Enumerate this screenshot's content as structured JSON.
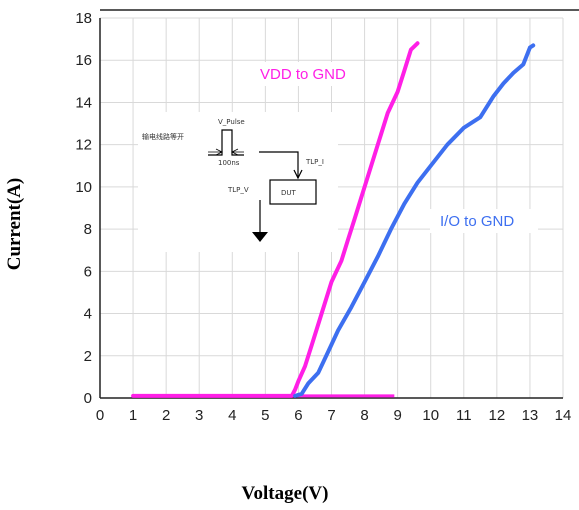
{
  "chart_data": {
    "type": "line",
    "xlabel": "Voltage(V)",
    "ylabel": "Current(A)",
    "xlim": [
      0,
      14
    ],
    "ylim": [
      0,
      18
    ],
    "x_ticks": [
      "0",
      "1",
      "2",
      "3",
      "4",
      "5",
      "6",
      "7",
      "8",
      "9",
      "10",
      "11",
      "12",
      "13",
      "14"
    ],
    "y_ticks": [
      "0",
      "2",
      "4",
      "6",
      "8",
      "10",
      "12",
      "14",
      "16",
      "18"
    ],
    "grid": true,
    "series": [
      {
        "name": "VDD to GND",
        "color": "#ff1fe6",
        "points": [
          [
            1.0,
            0.1
          ],
          [
            5.8,
            0.1
          ],
          [
            5.9,
            0.4
          ],
          [
            6.0,
            0.8
          ],
          [
            6.2,
            1.5
          ],
          [
            6.4,
            2.5
          ],
          [
            6.6,
            3.5
          ],
          [
            6.8,
            4.5
          ],
          [
            7.0,
            5.5
          ],
          [
            7.3,
            6.5
          ],
          [
            7.5,
            7.5
          ],
          [
            7.7,
            8.5
          ],
          [
            7.9,
            9.5
          ],
          [
            8.1,
            10.5
          ],
          [
            8.3,
            11.5
          ],
          [
            8.5,
            12.5
          ],
          [
            8.7,
            13.5
          ],
          [
            9.0,
            14.5
          ],
          [
            9.2,
            15.5
          ],
          [
            9.4,
            16.5
          ],
          [
            9.6,
            16.8
          ]
        ]
      },
      {
        "name": "I/O to GND",
        "color": "#3d6ff0",
        "points": [
          [
            5.9,
            0.1
          ],
          [
            6.1,
            0.2
          ],
          [
            6.3,
            0.7
          ],
          [
            6.6,
            1.2
          ],
          [
            6.9,
            2.2
          ],
          [
            7.2,
            3.2
          ],
          [
            7.6,
            4.3
          ],
          [
            8.0,
            5.5
          ],
          [
            8.4,
            6.7
          ],
          [
            8.8,
            8.0
          ],
          [
            9.2,
            9.2
          ],
          [
            9.6,
            10.2
          ],
          [
            10.0,
            11.0
          ],
          [
            10.5,
            12.0
          ],
          [
            11.0,
            12.8
          ],
          [
            11.5,
            13.3
          ],
          [
            11.9,
            14.3
          ],
          [
            12.2,
            14.9
          ],
          [
            12.5,
            15.4
          ],
          [
            12.8,
            15.8
          ],
          [
            13.0,
            16.6
          ],
          [
            13.1,
            16.7
          ]
        ]
      }
    ],
    "baseline": {
      "x_start": 1.0,
      "x_end": 8.9,
      "y": 0.1
    }
  },
  "inset": {
    "pulse_label": "V_Pulse",
    "chinese_label": "输电线路等开",
    "pulse_width": "100ns",
    "current_label": "TLP_I",
    "voltage_label": "TLP_V",
    "dut_label": "DUT"
  }
}
